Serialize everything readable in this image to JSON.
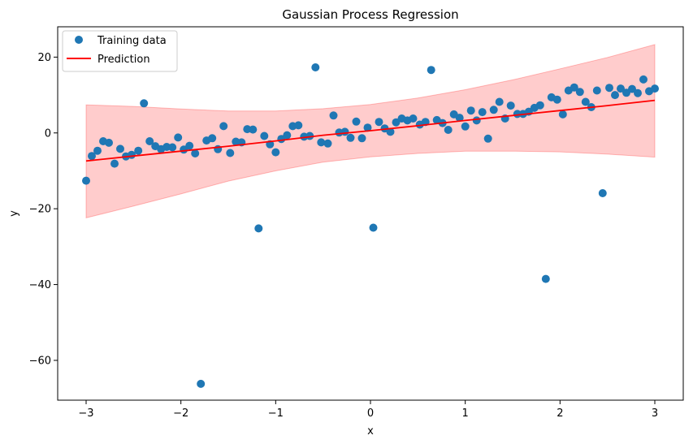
{
  "chart_data": {
    "type": "scatter",
    "title": "Gaussian Process Regression",
    "xlabel": "x",
    "ylabel": "y",
    "xlim": [
      -3.3,
      3.3
    ],
    "ylim": [
      -70.5,
      28.0
    ],
    "xticks": [
      -3,
      -2,
      -1,
      0,
      1,
      2,
      3
    ],
    "yticks": [
      -60,
      -40,
      -20,
      0,
      20
    ],
    "xtick_labels": [
      "−3",
      "−2",
      "−1",
      "0",
      "1",
      "2",
      "3"
    ],
    "ytick_labels": [
      "−60",
      "−40",
      "−20",
      "0",
      "20"
    ],
    "grid": false,
    "legend": {
      "placement": "top-left",
      "entries": [
        "Training data",
        "Prediction"
      ]
    },
    "colors": {
      "points": "#1f77b4",
      "prediction": "#ff0000",
      "band": "#ff0000"
    },
    "series": [
      {
        "name": "Training data",
        "kind": "scatter",
        "x": [
          -3.0,
          -2.94,
          -2.88,
          -2.82,
          -2.76,
          -2.7,
          -2.64,
          -2.58,
          -2.52,
          -2.45,
          -2.39,
          -2.33,
          -2.27,
          -2.21,
          -2.15,
          -2.09,
          -2.03,
          -1.97,
          -1.91,
          -1.85,
          -1.79,
          -1.73,
          -1.67,
          -1.61,
          -1.55,
          -1.48,
          -1.42,
          -1.36,
          -1.3,
          -1.24,
          -1.18,
          -1.12,
          -1.06,
          -1.0,
          -0.94,
          -0.88,
          -0.82,
          -0.76,
          -0.7,
          -0.64,
          -0.58,
          -0.52,
          -0.45,
          -0.39,
          -0.33,
          -0.27,
          -0.21,
          -0.15,
          -0.09,
          -0.03,
          0.03,
          0.09,
          0.15,
          0.21,
          0.27,
          0.33,
          0.39,
          0.45,
          0.52,
          0.58,
          0.64,
          0.7,
          0.76,
          0.82,
          0.88,
          0.94,
          1.0,
          1.06,
          1.12,
          1.18,
          1.24,
          1.3,
          1.36,
          1.42,
          1.48,
          1.55,
          1.61,
          1.67,
          1.73,
          1.79,
          1.85,
          1.91,
          1.97,
          2.03,
          2.09,
          2.15,
          2.21,
          2.27,
          2.33,
          2.39,
          2.45,
          2.52,
          2.58,
          2.64,
          2.7,
          2.76,
          2.82,
          2.88,
          2.94,
          3.0
        ],
        "y": [
          -12.6,
          -6.1,
          -4.7,
          -2.2,
          -2.6,
          -8.1,
          -4.2,
          -6.2,
          -5.8,
          -4.7,
          7.8,
          -2.2,
          -3.5,
          -4.3,
          -3.7,
          -3.8,
          -1.2,
          -4.4,
          -3.4,
          -5.4,
          -66.2,
          -2.0,
          -1.4,
          -4.3,
          1.8,
          -5.3,
          -2.3,
          -2.5,
          1.0,
          0.9,
          -25.2,
          -0.8,
          -3.0,
          -5.1,
          -1.6,
          -0.6,
          1.8,
          2.0,
          -1.0,
          -0.8,
          17.3,
          -2.5,
          -2.8,
          4.6,
          0.1,
          0.3,
          -1.3,
          3.0,
          -1.4,
          1.4,
          -25.0,
          2.9,
          1.2,
          0.3,
          2.8,
          3.8,
          3.3,
          3.8,
          2.2,
          2.9,
          16.6,
          3.4,
          2.6,
          0.8,
          4.9,
          4.0,
          1.7,
          5.9,
          3.3,
          5.5,
          -1.5,
          6.1,
          8.2,
          3.8,
          7.2,
          5.0,
          5.0,
          5.6,
          6.6,
          7.3,
          -38.5,
          9.4,
          8.8,
          4.9,
          11.2,
          12.0,
          10.8,
          8.2,
          6.8,
          11.2,
          -15.9,
          11.9,
          10.0,
          11.7,
          10.6,
          11.6,
          10.5,
          14.1,
          11.0,
          11.7
        ]
      },
      {
        "name": "Prediction",
        "kind": "line",
        "x": [
          -3.0,
          -2.5,
          -2.0,
          -1.5,
          -1.0,
          -0.5,
          0.0,
          0.5,
          1.0,
          1.5,
          2.0,
          2.5,
          3.0
        ],
        "y": [
          -7.4,
          -6.1,
          -4.8,
          -3.5,
          -2.1,
          -0.6,
          0.6,
          1.9,
          3.3,
          4.6,
          5.9,
          7.2,
          8.6
        ]
      },
      {
        "name": "Confidence interval",
        "kind": "band",
        "x": [
          -3.0,
          -2.5,
          -2.0,
          -1.5,
          -1.0,
          -0.5,
          0.0,
          0.5,
          1.0,
          1.5,
          2.0,
          2.5,
          3.0
        ],
        "upper": [
          7.4,
          7.0,
          6.3,
          5.8,
          5.8,
          6.4,
          7.5,
          9.2,
          11.4,
          14.0,
          16.9,
          19.9,
          23.3
        ],
        "lower": [
          -22.4,
          -19.3,
          -16.1,
          -12.7,
          -10.0,
          -7.7,
          -6.3,
          -5.4,
          -4.8,
          -4.8,
          -5.0,
          -5.6,
          -6.4
        ]
      }
    ]
  }
}
